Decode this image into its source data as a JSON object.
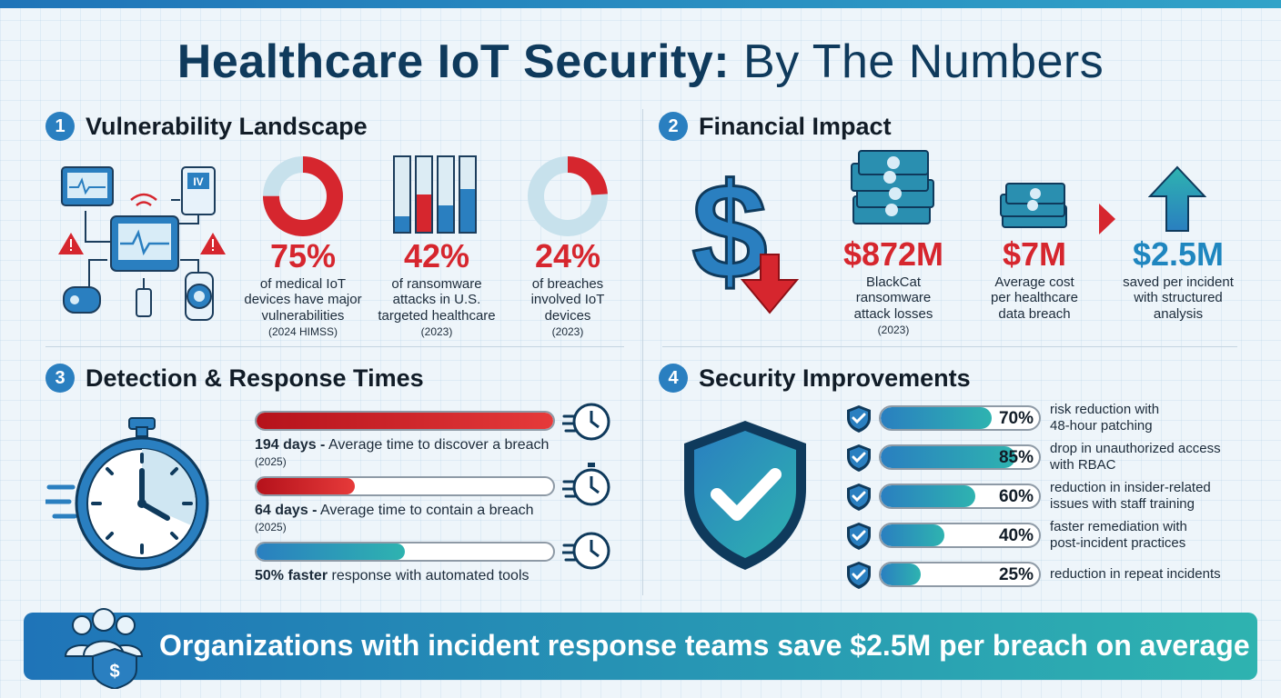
{
  "title": {
    "bold": "Healthcare IoT Security:",
    "rest": "By The Numbers"
  },
  "sections": {
    "s1": {
      "number": "1",
      "title": "Vulnerability Landscape"
    },
    "s2": {
      "number": "2",
      "title": "Financial Impact"
    },
    "s3": {
      "number": "3",
      "title": "Detection & Response Times"
    },
    "s4": {
      "number": "4",
      "title": "Security Improvements"
    }
  },
  "vulnerability": {
    "device_label": "IV",
    "stats": [
      {
        "value": "75%",
        "fraction": 0.75,
        "line1": "of medical IoT",
        "line2": "devices have major",
        "line3": "vulnerabilities",
        "source": "(2024 HIMSS)"
      },
      {
        "value": "42%",
        "fraction": 0.42,
        "line1": "of ransomware",
        "line2": "attacks in U.S.",
        "line3": "targeted healthcare",
        "source": "(2023)"
      },
      {
        "value": "24%",
        "fraction": 0.24,
        "line1": "of breaches",
        "line2": "involved IoT",
        "line3": "devices",
        "source": "(2023)"
      }
    ]
  },
  "financial": {
    "stats": [
      {
        "value": "$872M",
        "line1": "BlackCat",
        "line2": "ransomware",
        "line3": "attack losses",
        "source": "(2023)"
      },
      {
        "value": "$7M",
        "line1": "Average cost",
        "line2": "per healthcare",
        "line3": "data breach"
      },
      {
        "value": "$2.5M",
        "line1": "saved per incident",
        "line2": "with structured",
        "line3": "analysis"
      }
    ]
  },
  "detection": {
    "bars": [
      {
        "bold": "194 days -",
        "text": " Average time to discover a breach",
        "source": "(2025)",
        "fraction": 1.0,
        "color": "red"
      },
      {
        "bold": "64 days -",
        "text": " Average time to contain a breach",
        "source": "(2025)",
        "fraction": 0.33,
        "color": "red"
      },
      {
        "bold": "50% faster",
        "text": " response with automated tools",
        "source": "",
        "fraction": 0.5,
        "color": "blue"
      }
    ]
  },
  "improvements": [
    {
      "pct": "70%",
      "fraction": 0.7,
      "line1": "risk reduction with",
      "line2": "48-hour patching"
    },
    {
      "pct": "85%",
      "fraction": 0.85,
      "line1": "drop in unauthorized access",
      "line2": "with RBAC"
    },
    {
      "pct": "60%",
      "fraction": 0.6,
      "line1": "reduction in insider-related",
      "line2": "issues with staff training"
    },
    {
      "pct": "40%",
      "fraction": 0.4,
      "line1": "faster remediation with",
      "line2": "post-incident practices"
    },
    {
      "pct": "25%",
      "fraction": 0.25,
      "line1": "reduction in repeat incidents",
      "line2": ""
    }
  ],
  "banner": {
    "text": "Organizations with incident response teams save $2.5M per breach on average"
  },
  "colors": {
    "red": "#d6262e",
    "blue": "#2a7fc0",
    "teal": "#2eb3b0",
    "navy": "#0f3a5c"
  }
}
